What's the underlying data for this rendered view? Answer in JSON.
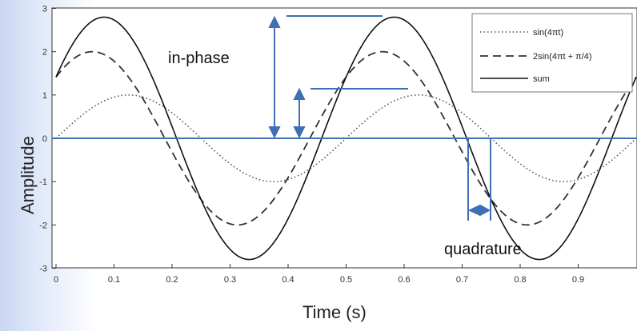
{
  "chart_data": {
    "type": "line",
    "xlabel": "Time (s)",
    "ylabel": "Amplitude",
    "xlim": [
      0,
      1.0
    ],
    "ylim": [
      -3,
      3
    ],
    "x_ticks": [
      "0",
      "0.1",
      "0.2",
      "0.3",
      "0.4",
      "0.5",
      "0.6",
      "0.7",
      "0.8",
      "0.9"
    ],
    "y_ticks": [
      "-3",
      "-2",
      "-1",
      "0",
      "1",
      "2",
      "3"
    ],
    "legend_position": "top-right",
    "series": [
      {
        "name": "sin(4πt)",
        "style": "dotted",
        "color": "#555555",
        "amplitude": 1,
        "frequency_hz": 2,
        "phase_rad": 0
      },
      {
        "name": "2sin(4πt + π/4)",
        "style": "dashed",
        "color": "#333333",
        "amplitude": 2,
        "frequency_hz": 2,
        "phase_rad": 0.7854
      },
      {
        "name": "sum",
        "style": "solid",
        "color": "#111111",
        "amplitude": 2.798,
        "frequency_hz": 2,
        "phase_rad": 0.5302
      }
    ],
    "annotations": [
      {
        "text": "in-phase",
        "color": "#1f5fa8"
      },
      {
        "text": "quadrature",
        "color": "#1f5fa8"
      }
    ]
  }
}
